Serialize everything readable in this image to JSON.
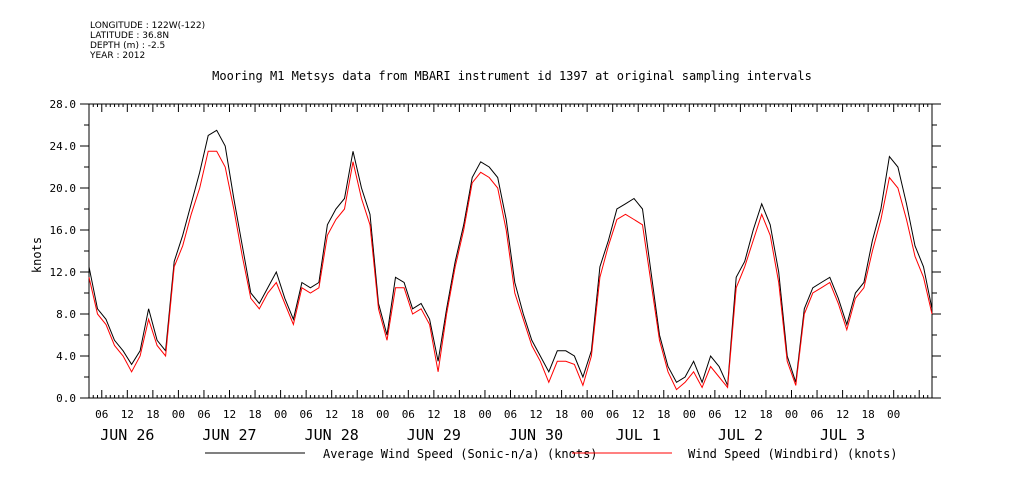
{
  "meta": {
    "longitude": "LONGITUDE : 122W(-122)",
    "latitude": "LATITUDE : 36.8N",
    "depth": "DEPTH (m) : -2.5",
    "year": "YEAR : 2012"
  },
  "chart_data": {
    "type": "line",
    "title": "Mooring M1 Metsys data from MBARI instrument id 1397 at original sampling intervals",
    "xlabel": "",
    "ylabel": "knots",
    "ylim": [
      0,
      28
    ],
    "xlim_hours": [
      0,
      198
    ],
    "x_start": "2012-06-26T03:00",
    "y_ticks": [
      "0.0",
      "4.0",
      "8.0",
      "12.0",
      "16.0",
      "20.0",
      "24.0",
      "28.0"
    ],
    "x_hour_ticks": [
      "06",
      "12",
      "18",
      "00",
      "06",
      "12",
      "18",
      "00",
      "06",
      "12",
      "18",
      "00",
      "06",
      "12",
      "18",
      "00",
      "06",
      "12",
      "18",
      "00",
      "06",
      "12",
      "18",
      "00",
      "06",
      "12",
      "18",
      "00",
      "06",
      "12",
      "18",
      "00"
    ],
    "date_labels": [
      "JUN 26",
      "JUN 27",
      "JUN 28",
      "JUN 29",
      "JUN 30",
      "JUL  1",
      "JUL  2",
      "JUL  3"
    ],
    "grid": false,
    "legend_position": "bottom",
    "series": [
      {
        "name": "Average Wind Speed (Sonic-n/a) (knots)",
        "color": "#000000",
        "x": [
          0,
          2,
          4,
          6,
          8,
          10,
          12,
          14,
          16,
          18,
          20,
          22,
          24,
          26,
          28,
          30,
          32,
          34,
          36,
          38,
          40,
          42,
          44,
          46,
          48,
          50,
          52,
          54,
          56,
          58,
          60,
          62,
          64,
          66,
          68,
          70,
          72,
          74,
          76,
          78,
          80,
          82,
          84,
          86,
          88,
          90,
          92,
          94,
          96,
          98,
          100,
          102,
          104,
          106,
          108,
          110,
          112,
          114,
          116,
          118,
          120,
          122,
          124,
          126,
          128,
          130,
          132,
          134,
          136,
          138,
          140,
          142,
          144,
          146,
          148,
          150,
          152,
          154,
          156,
          158,
          160,
          162,
          164,
          166,
          168,
          170,
          172,
          174,
          176,
          178,
          180,
          182,
          184,
          186,
          188,
          190,
          192,
          194,
          196,
          198
        ],
        "y": [
          12.5,
          8.5,
          7.5,
          5.5,
          4.5,
          3.2,
          4.5,
          8.5,
          5.5,
          4.5,
          13.0,
          15.5,
          18.5,
          21.5,
          25.0,
          25.5,
          24.0,
          19.0,
          14.5,
          10.0,
          9.0,
          10.5,
          12.0,
          9.5,
          7.5,
          11.0,
          10.5,
          11.0,
          16.5,
          18.0,
          19.0,
          23.5,
          20.0,
          17.5,
          9.0,
          6.0,
          11.5,
          11.0,
          8.5,
          9.0,
          7.5,
          3.5,
          8.5,
          13.0,
          16.5,
          21.0,
          22.5,
          22.0,
          21.0,
          17.0,
          11.0,
          8.0,
          5.5,
          4.0,
          2.5,
          4.5,
          4.5,
          4.0,
          2.0,
          4.5,
          12.5,
          15.0,
          18.0,
          18.5,
          19.0,
          18.0,
          12.0,
          6.0,
          3.0,
          1.5,
          2.0,
          3.5,
          1.5,
          4.0,
          3.0,
          1.2,
          11.5,
          13.0,
          16.0,
          18.5,
          16.5,
          12.0,
          4.0,
          1.5,
          8.5,
          10.5,
          11.0,
          11.5,
          9.5,
          7.0,
          10.0,
          11.0,
          15.0,
          18.0,
          23.0,
          22.0,
          18.5,
          14.5,
          12.5,
          8.5
        ]
      },
      {
        "name": "Wind Speed (Windbird) (knots)",
        "color": "#ff0000",
        "x": [
          0,
          2,
          4,
          6,
          8,
          10,
          12,
          14,
          16,
          18,
          20,
          22,
          24,
          26,
          28,
          30,
          32,
          34,
          36,
          38,
          40,
          42,
          44,
          46,
          48,
          50,
          52,
          54,
          56,
          58,
          60,
          62,
          64,
          66,
          68,
          70,
          72,
          74,
          76,
          78,
          80,
          82,
          84,
          86,
          88,
          90,
          92,
          94,
          96,
          98,
          100,
          102,
          104,
          106,
          108,
          110,
          112,
          114,
          116,
          118,
          120,
          122,
          124,
          126,
          128,
          130,
          132,
          134,
          136,
          138,
          140,
          142,
          144,
          146,
          148,
          150,
          152,
          154,
          156,
          158,
          160,
          162,
          164,
          166,
          168,
          170,
          172,
          174,
          176,
          178,
          180,
          182,
          184,
          186,
          188,
          190,
          192,
          194,
          196,
          198
        ],
        "y": [
          11.5,
          8.0,
          7.0,
          5.0,
          4.0,
          2.5,
          4.0,
          7.5,
          5.0,
          4.0,
          12.5,
          14.5,
          17.5,
          20.0,
          23.5,
          23.5,
          22.0,
          18.0,
          13.5,
          9.5,
          8.5,
          10.0,
          11.0,
          9.0,
          7.0,
          10.5,
          10.0,
          10.5,
          15.5,
          17.0,
          18.0,
          22.5,
          19.0,
          16.5,
          8.5,
          5.5,
          10.5,
          10.5,
          8.0,
          8.5,
          7.0,
          2.5,
          8.0,
          12.5,
          16.0,
          20.5,
          21.5,
          21.0,
          20.0,
          16.0,
          10.0,
          7.5,
          5.0,
          3.5,
          1.5,
          3.5,
          3.5,
          3.2,
          1.2,
          4.0,
          11.5,
          14.5,
          17.0,
          17.5,
          17.0,
          16.5,
          11.0,
          5.5,
          2.5,
          0.8,
          1.5,
          2.5,
          1.0,
          3.0,
          2.0,
          1.0,
          10.5,
          12.5,
          15.0,
          17.5,
          15.5,
          11.0,
          3.5,
          1.2,
          8.0,
          10.0,
          10.5,
          11.0,
          9.0,
          6.5,
          9.5,
          10.5,
          14.0,
          17.0,
          21.0,
          20.0,
          17.0,
          13.5,
          11.5,
          8.0
        ]
      }
    ]
  }
}
